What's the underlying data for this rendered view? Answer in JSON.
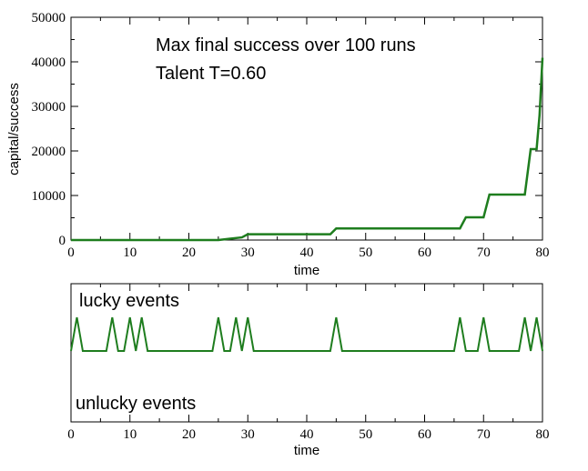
{
  "chart_data": [
    {
      "type": "line",
      "annotations": [
        "Max final success over 100 runs",
        "Talent T=0.60"
      ],
      "xlabel": "time",
      "ylabel": "capital/success",
      "xlim": [
        0,
        80
      ],
      "ylim": [
        0,
        50000
      ],
      "x_ticks": [
        "0",
        "10",
        "20",
        "30",
        "40",
        "50",
        "60",
        "70",
        "80"
      ],
      "y_ticks": [
        "0",
        "10000",
        "20000",
        "30000",
        "40000",
        "50000"
      ],
      "grid": false,
      "series": [
        {
          "color": "#1e7d1e",
          "points": [
            [
              0,
              0
            ],
            [
              25,
              0
            ],
            [
              27,
              300
            ],
            [
              29,
              600
            ],
            [
              30,
              1300
            ],
            [
              44,
              1300
            ],
            [
              45,
              2600
            ],
            [
              66,
              2600
            ],
            [
              67,
              5100
            ],
            [
              70,
              5100
            ],
            [
              71,
              10200
            ],
            [
              77,
              10200
            ],
            [
              78,
              20400
            ],
            [
              79,
              20400
            ],
            [
              79.5,
              28000
            ],
            [
              80,
              40900
            ]
          ]
        }
      ]
    },
    {
      "type": "line",
      "annotations": [
        "lucky events",
        "unlucky events"
      ],
      "xlabel": "time",
      "xlim": [
        0,
        80
      ],
      "x_ticks": [
        "0",
        "10",
        "20",
        "30",
        "40",
        "50",
        "60",
        "70",
        "80"
      ],
      "grid": false,
      "series": [
        {
          "color": "#1e7d1e",
          "events": [
            {
              "t": 1,
              "kind": "lucky"
            },
            {
              "t": 7,
              "kind": "lucky"
            },
            {
              "t": 10,
              "kind": "lucky"
            },
            {
              "t": 12,
              "kind": "lucky"
            },
            {
              "t": 25,
              "kind": "lucky"
            },
            {
              "t": 28,
              "kind": "lucky"
            },
            {
              "t": 30,
              "kind": "lucky"
            },
            {
              "t": 45,
              "kind": "lucky"
            },
            {
              "t": 66,
              "kind": "lucky"
            },
            {
              "t": 70,
              "kind": "lucky"
            },
            {
              "t": 77,
              "kind": "lucky"
            },
            {
              "t": 79,
              "kind": "lucky"
            }
          ]
        }
      ]
    }
  ]
}
